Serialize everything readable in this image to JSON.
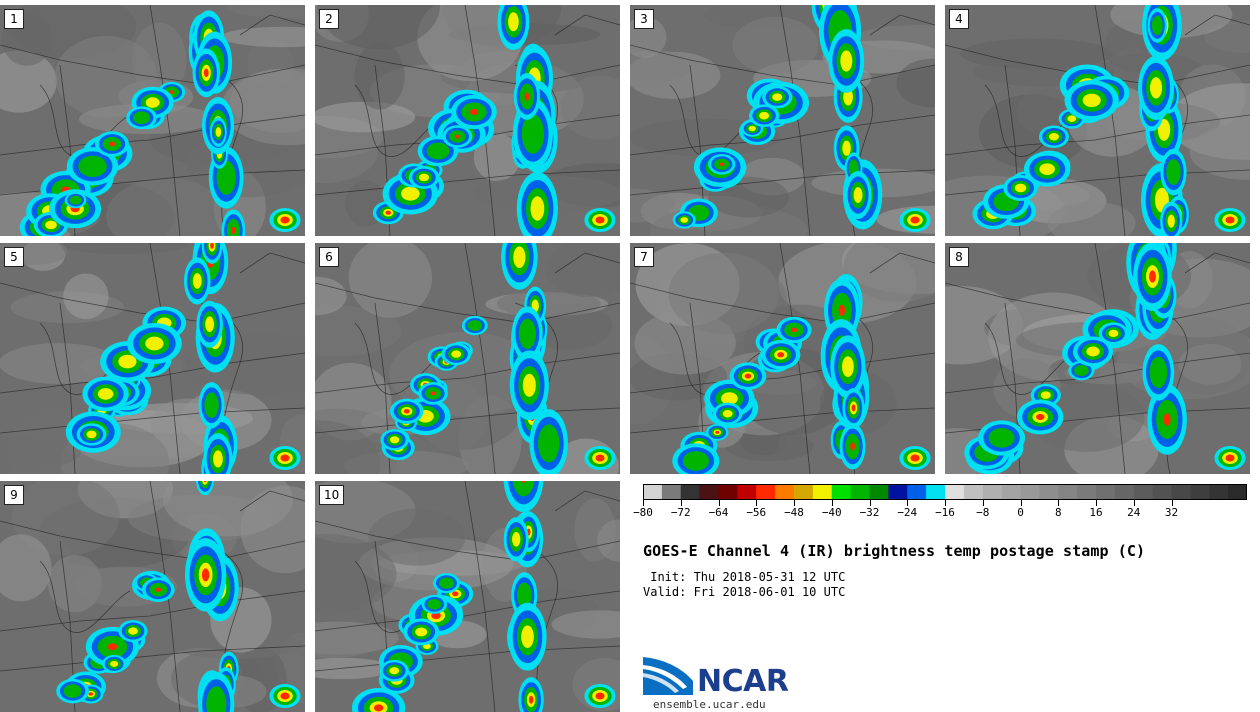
{
  "title": "GOES-E Channel 4 (IR) brightness temp postage stamp (C)",
  "init": " Init: Thu 2018-05-31 12 UTC",
  "valid": "Valid: Fri 2018-06-01 10 UTC",
  "logo": {
    "text": "NCAR",
    "site": "ensemble.ucar.edu"
  },
  "panels": [
    "1",
    "2",
    "3",
    "4",
    "5",
    "6",
    "7",
    "8",
    "9",
    "10"
  ],
  "colorbar": {
    "unit": "C",
    "colors": [
      "#d4d4d4",
      "#7a7a7a",
      "#333333",
      "#4a1212",
      "#700000",
      "#c00000",
      "#ff2a00",
      "#ff7a00",
      "#d4a800",
      "#f0f000",
      "#00e000",
      "#00b400",
      "#008800",
      "#0012a0",
      "#0060e8",
      "#00e0f0",
      "#e0e0e0",
      "#c0c0c0",
      "#b0b0b0",
      "#a4a4a4",
      "#999999",
      "#8e8e8e",
      "#848484",
      "#7a7a7a",
      "#707070",
      "#666666",
      "#5c5c5c",
      "#525252",
      "#484848",
      "#3e3e3e",
      "#343434",
      "#2a2a2a"
    ],
    "ticks": [
      "−80",
      "−72",
      "−64",
      "−56",
      "−48",
      "−40",
      "−32",
      "−24",
      "−16",
      "−8",
      "0",
      "8",
      "16",
      "24",
      "32"
    ]
  }
}
